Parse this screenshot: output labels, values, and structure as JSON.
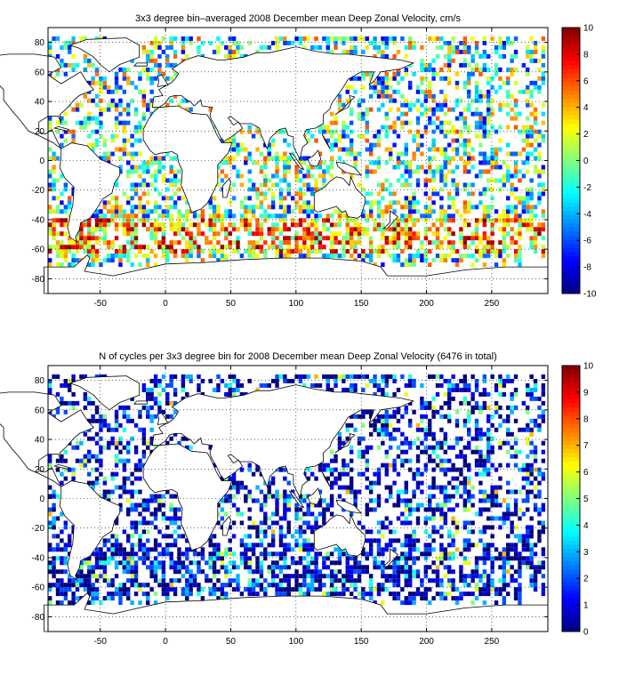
{
  "chart_data": [
    {
      "type": "heatmap",
      "title": "3x3 degree bin–averaged 2008 December mean Deep Zonal Velocity, cm/s",
      "xlabel": "",
      "ylabel": "",
      "xlim": [
        -90,
        293
      ],
      "ylim": [
        -90,
        90
      ],
      "x_ticks": [
        "-50",
        "0",
        "50",
        "100",
        "150",
        "200",
        "250"
      ],
      "y_ticks": [
        "80",
        "60",
        "40",
        "20",
        "0",
        "-20",
        "-40",
        "-60",
        "-80"
      ],
      "colorbar": {
        "min": -10,
        "max": 10,
        "ticks": [
          "10",
          "8",
          "6",
          "4",
          "2",
          "0",
          "-2",
          "-4",
          "-6",
          "-8",
          "-10"
        ]
      },
      "bin_size_deg": 3,
      "grid": "dotted",
      "colormap": "jet",
      "colors": {
        "coast": "#000000",
        "grid": "#000000",
        "background": "#ffffff"
      }
    },
    {
      "type": "heatmap",
      "title": "N of cycles per 3x3 degree bin for 2008 December mean Deep Zonal Velocity (6476 in total)",
      "xlabel": "",
      "ylabel": "",
      "xlim": [
        -90,
        293
      ],
      "ylim": [
        -90,
        90
      ],
      "x_ticks": [
        "-50",
        "0",
        "50",
        "100",
        "150",
        "200",
        "250"
      ],
      "y_ticks": [
        "80",
        "60",
        "40",
        "20",
        "0",
        "-20",
        "-40",
        "-60",
        "-80"
      ],
      "colorbar": {
        "min": 0,
        "max": 10,
        "ticks": [
          "10",
          "9",
          "8",
          "7",
          "6",
          "5",
          "4",
          "3",
          "2",
          "1",
          "0"
        ]
      },
      "bin_size_deg": 3,
      "grid": "dotted",
      "colormap": "jet",
      "colors": {
        "coast": "#000000",
        "grid": "#000000",
        "background": "#ffffff"
      }
    }
  ]
}
